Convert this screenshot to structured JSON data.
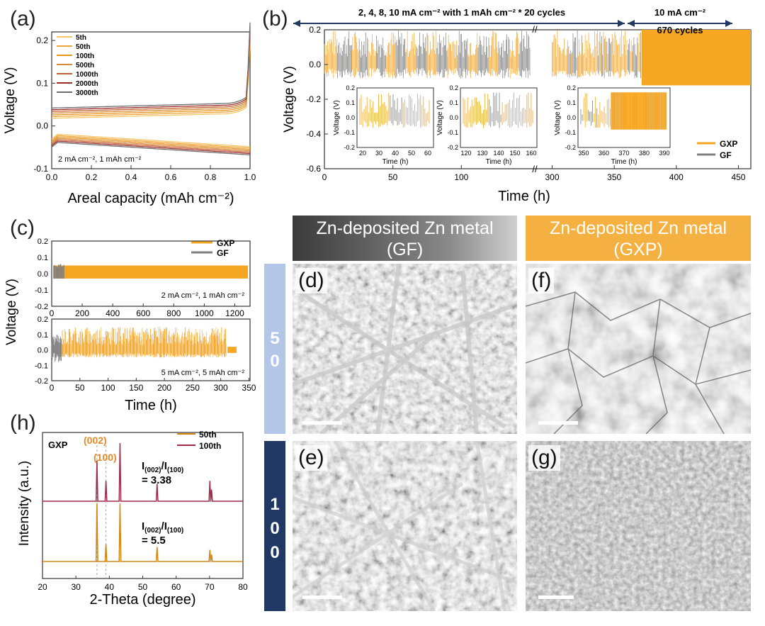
{
  "figure": {
    "panels": {
      "a": "(a)",
      "b": "(b)",
      "c": "(c)",
      "d": "(d)",
      "e": "(e)",
      "f": "(f)",
      "g": "(g)",
      "h": "(h)"
    },
    "colors": {
      "gxp": "#f5a623",
      "gf": "#7f7f7f",
      "dark_navy": "#1f3864",
      "light_blue": "#b4c6e7",
      "gxp_header": "#f4b041",
      "gf_header_dark": "#3a3a3a",
      "xrd_100th": "#9c2c4a",
      "xrd_50th": "#d58512"
    }
  },
  "panel_a": {
    "ylabel": "Voltage (V)",
    "xlabel": "Areal capacity (mAh cm⁻²)",
    "annotation": "2 mA cm⁻², 1 mAh cm⁻²",
    "legend": [
      {
        "label": "5th",
        "color": "#f6c667"
      },
      {
        "label": "50th",
        "color": "#efa43a"
      },
      {
        "label": "100th",
        "color": "#e8951f"
      },
      {
        "label": "500th",
        "color": "#d98a3a"
      },
      {
        "label": "1000th",
        "color": "#c4602d"
      },
      {
        "label": "2000th",
        "color": "#9c2c2c"
      },
      {
        "label": "3000th",
        "color": "#6e6e6e"
      }
    ],
    "xticks": [
      "0.0",
      "0.2",
      "0.4",
      "0.6",
      "0.8",
      "1.0"
    ],
    "yticks": [
      "0.2",
      "0.1",
      "0.0",
      "-0.1"
    ]
  },
  "panel_b": {
    "top_left": "2, 4, 8, 10 mA cm⁻² with 1 mAh cm⁻²  * 20 cycles",
    "top_right": "10 mA cm⁻²",
    "cycles": "670 cycles",
    "ylabel": "Voltage (V)",
    "xlabel": "Time (h)",
    "yticks": [
      "0.2",
      "0.0",
      "-0.2",
      "-0.4",
      "-0.6"
    ],
    "xticks": [
      "0",
      "50",
      "100",
      "300",
      "350",
      "400",
      "450"
    ],
    "legend": [
      {
        "label": "GXP",
        "color": "#f5a623"
      },
      {
        "label": "GF",
        "color": "#7f7f7f"
      }
    ],
    "insets": [
      {
        "xticks": [
          "20",
          "30",
          "40",
          "50",
          "60"
        ],
        "xlabel": "Time (h)",
        "ylabel": "Voltage (V)",
        "yticks": [
          "0.2",
          "0.1",
          "0.0",
          "-0.1",
          "-0.2"
        ]
      },
      {
        "xticks": [
          "120",
          "130",
          "140",
          "150",
          "160"
        ],
        "xlabel": "Time (h)",
        "ylabel": "Voltage (V)",
        "yticks": [
          "0.2",
          "0.1",
          "0.0",
          "-0.1",
          "-0.2"
        ]
      },
      {
        "xticks": [
          "350",
          "360",
          "370",
          "380",
          "390"
        ],
        "xlabel": "Time (h)",
        "ylabel": "Voltage (V)",
        "yticks": [
          "0.2",
          "0.1",
          "0.0",
          "-0.1",
          "-0.2"
        ]
      }
    ]
  },
  "panel_c": {
    "ylabel": "Voltage (V)",
    "xlabel": "Time (h)",
    "top_legend": [
      {
        "label": "GXP",
        "color": "#f5a623"
      },
      {
        "label": "GF",
        "color": "#7f7f7f"
      }
    ],
    "top_annotation": "2 mA cm⁻², 1 mAh cm⁻²",
    "bottom_annotation": "5 mA cm⁻², 5 mAh cm⁻²",
    "top_xticks": [
      "0",
      "200",
      "400",
      "600",
      "800",
      "1000",
      "1200"
    ],
    "bottom_xticks": [
      "0",
      "50",
      "100",
      "150",
      "200",
      "250",
      "300",
      "350"
    ],
    "yticks": [
      "0.2",
      "0.1",
      "0.0",
      "-0.1",
      "-0.2"
    ]
  },
  "panel_h": {
    "label": "GXP",
    "peak1": "(002)",
    "peak2": "(100)",
    "ratio_top_main": "I",
    "ratio_top_label": "(002)",
    "ratio_top_mid": "/I",
    "ratio_top_label2": "(100)",
    "ratio_top_value": "= 3.38",
    "ratio_bottom_value": "= 5.5",
    "legend": [
      {
        "label": "50th",
        "color": "#d58512"
      },
      {
        "label": "100th",
        "color": "#9c2c4a"
      }
    ],
    "ylabel": "Intensity (a.u.)",
    "xlabel": "2-Theta (degree)",
    "xticks": [
      "20",
      "30",
      "40",
      "50",
      "60",
      "70",
      "80"
    ]
  },
  "sem": {
    "header_gf_line1": "Zn-deposited Zn metal",
    "header_gf_line2": "(GF)",
    "header_gxp_line1": "Zn-deposited Zn metal",
    "header_gxp_line2": "(GXP)",
    "row1_label": [
      "5",
      "0"
    ],
    "row2_label": [
      "1",
      "0",
      "0"
    ]
  },
  "chart_data": [
    {
      "type": "line",
      "title": "(a)",
      "xlabel": "Areal capacity (mAh cm⁻²)",
      "ylabel": "Voltage (V)",
      "xlim": [
        0,
        1.0
      ],
      "ylim": [
        -0.1,
        0.22
      ],
      "series": [
        {
          "name": "5th",
          "x": [
            0,
            0.1,
            0.5,
            0.9,
            0.98,
            1.0
          ],
          "y": [
            0.032,
            0.036,
            0.04,
            0.048,
            0.07,
            0.2
          ]
        },
        {
          "name": "3000th",
          "x": [
            0,
            0.1,
            0.5,
            0.9,
            0.98,
            1.0
          ],
          "y": [
            0.022,
            0.026,
            0.03,
            0.038,
            0.06,
            0.17
          ]
        }
      ]
    },
    {
      "type": "line",
      "title": "(h)",
      "xlabel": "2-Theta (degree)",
      "ylabel": "Intensity (a.u.)",
      "xlim": [
        20,
        80
      ],
      "series": [
        {
          "name": "100th",
          "peaks": [
            {
              "x": 36.3,
              "h": 0.7
            },
            {
              "x": 39.0,
              "h": 0.35
            },
            {
              "x": 43.2,
              "h": 1.0
            },
            {
              "x": 54.3,
              "h": 0.3
            },
            {
              "x": 70.1,
              "h": 0.35
            },
            {
              "x": 70.6,
              "h": 0.2
            }
          ]
        },
        {
          "name": "50th",
          "peaks": [
            {
              "x": 36.3,
              "h": 1.0
            },
            {
              "x": 39.0,
              "h": 0.3
            },
            {
              "x": 43.2,
              "h": 1.0
            },
            {
              "x": 54.3,
              "h": 0.25
            },
            {
              "x": 70.1,
              "h": 0.2
            },
            {
              "x": 70.6,
              "h": 0.12
            }
          ]
        }
      ]
    }
  ]
}
